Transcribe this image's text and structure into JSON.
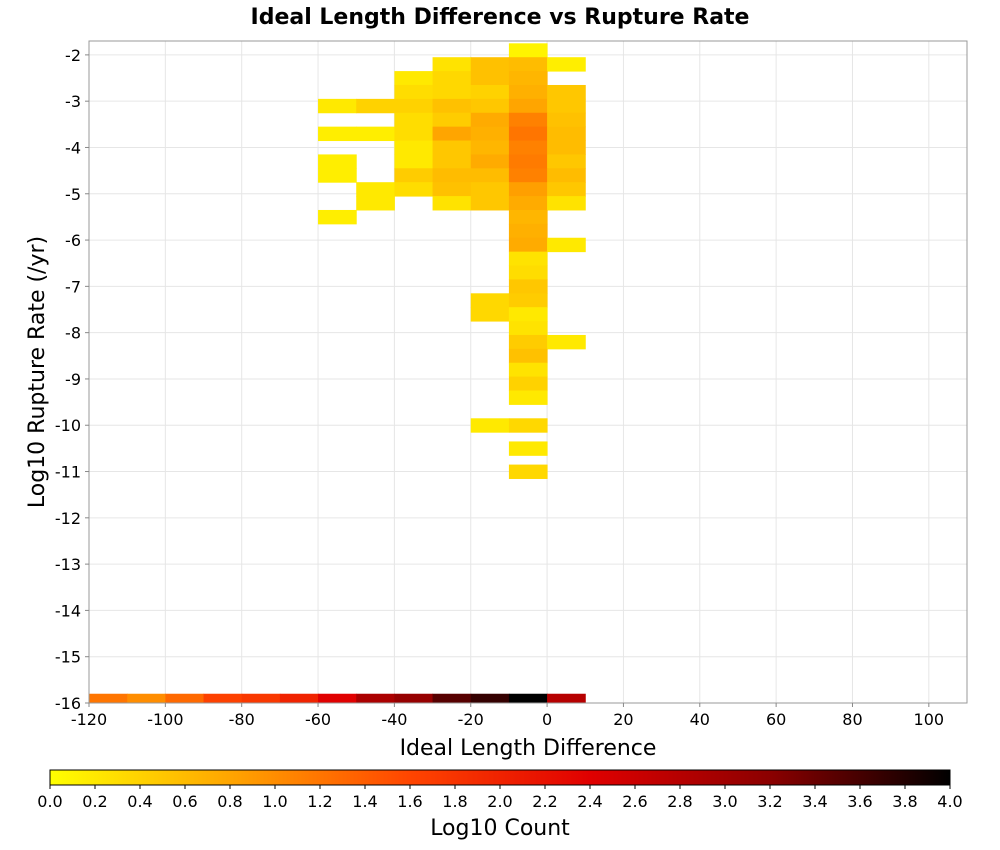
{
  "chart_data": {
    "type": "heatmap",
    "title": "Ideal Length Difference vs Rupture Rate",
    "xlabel": "Ideal Length Difference",
    "ylabel": "Log10 Rupture Rate (/yr)",
    "colorbar_label": "Log10 Count",
    "xlim": [
      -120,
      110
    ],
    "ylim": [
      -16,
      -1.7
    ],
    "x_ticks": [
      -120,
      -100,
      -80,
      -60,
      -40,
      -20,
      0,
      20,
      40,
      60,
      80,
      100
    ],
    "y_ticks": [
      -2,
      -3,
      -4,
      -5,
      -6,
      -7,
      -8,
      -9,
      -10,
      -11,
      -12,
      -13,
      -14,
      -15,
      -16
    ],
    "colorbar_range": [
      0,
      4
    ],
    "colorbar_ticks": [
      "0.0",
      "0.2",
      "0.4",
      "0.6",
      "0.8",
      "1.0",
      "1.2",
      "1.4",
      "1.6",
      "1.8",
      "2.0",
      "2.2",
      "2.4",
      "2.6",
      "2.8",
      "3.0",
      "3.2",
      "3.4",
      "3.6",
      "3.8",
      "4.0"
    ],
    "colormap": [
      "#ffff00",
      "#ffa500",
      "#ff4500",
      "#e00000",
      "#8b0000",
      "#000000"
    ],
    "grid": true,
    "bin_width_x": 10,
    "bin_height_y": 0.3,
    "cells": [
      {
        "x": -5,
        "y": -1.9,
        "v": 0.1
      },
      {
        "x": -25,
        "y": -2.2,
        "v": 0.25
      },
      {
        "x": -15,
        "y": -2.2,
        "v": 0.55
      },
      {
        "x": -5,
        "y": -2.2,
        "v": 0.6
      },
      {
        "x": 5,
        "y": -2.2,
        "v": 0.15
      },
      {
        "x": -35,
        "y": -2.5,
        "v": 0.2
      },
      {
        "x": -25,
        "y": -2.5,
        "v": 0.35
      },
      {
        "x": -15,
        "y": -2.5,
        "v": 0.55
      },
      {
        "x": -5,
        "y": -2.5,
        "v": 0.65
      },
      {
        "x": -35,
        "y": -2.8,
        "v": 0.3
      },
      {
        "x": -25,
        "y": -2.8,
        "v": 0.35
      },
      {
        "x": -15,
        "y": -2.8,
        "v": 0.4
      },
      {
        "x": -5,
        "y": -2.8,
        "v": 0.7
      },
      {
        "x": 5,
        "y": -2.8,
        "v": 0.5
      },
      {
        "x": -55,
        "y": -3.1,
        "v": 0.2
      },
      {
        "x": -45,
        "y": -3.1,
        "v": 0.4
      },
      {
        "x": -35,
        "y": -3.1,
        "v": 0.4
      },
      {
        "x": -25,
        "y": -3.1,
        "v": 0.55
      },
      {
        "x": -15,
        "y": -3.1,
        "v": 0.5
      },
      {
        "x": -5,
        "y": -3.1,
        "v": 0.8
      },
      {
        "x": 5,
        "y": -3.1,
        "v": 0.5
      },
      {
        "x": -35,
        "y": -3.4,
        "v": 0.3
      },
      {
        "x": -25,
        "y": -3.4,
        "v": 0.45
      },
      {
        "x": -15,
        "y": -3.4,
        "v": 0.75
      },
      {
        "x": -5,
        "y": -3.4,
        "v": 1.1
      },
      {
        "x": 5,
        "y": -3.4,
        "v": 0.55
      },
      {
        "x": -55,
        "y": -3.7,
        "v": 0.15
      },
      {
        "x": -45,
        "y": -3.7,
        "v": 0.15
      },
      {
        "x": -35,
        "y": -3.7,
        "v": 0.3
      },
      {
        "x": -25,
        "y": -3.7,
        "v": 0.8
      },
      {
        "x": -15,
        "y": -3.7,
        "v": 0.7
      },
      {
        "x": -5,
        "y": -3.7,
        "v": 1.2
      },
      {
        "x": 5,
        "y": -3.7,
        "v": 0.6
      },
      {
        "x": -35,
        "y": -4.0,
        "v": 0.2
      },
      {
        "x": -25,
        "y": -4.0,
        "v": 0.5
      },
      {
        "x": -15,
        "y": -4.0,
        "v": 0.65
      },
      {
        "x": -5,
        "y": -4.0,
        "v": 1.1
      },
      {
        "x": 5,
        "y": -4.0,
        "v": 0.6
      },
      {
        "x": -55,
        "y": -4.3,
        "v": 0.15
      },
      {
        "x": -35,
        "y": -4.3,
        "v": 0.2
      },
      {
        "x": -25,
        "y": -4.3,
        "v": 0.5
      },
      {
        "x": -15,
        "y": -4.3,
        "v": 0.75
      },
      {
        "x": -5,
        "y": -4.3,
        "v": 1.15
      },
      {
        "x": 5,
        "y": -4.3,
        "v": 0.5
      },
      {
        "x": -55,
        "y": -4.6,
        "v": 0.15
      },
      {
        "x": -35,
        "y": -4.6,
        "v": 0.45
      },
      {
        "x": -25,
        "y": -4.6,
        "v": 0.6
      },
      {
        "x": -15,
        "y": -4.6,
        "v": 0.6
      },
      {
        "x": -5,
        "y": -4.6,
        "v": 1.1
      },
      {
        "x": 5,
        "y": -4.6,
        "v": 0.6
      },
      {
        "x": -45,
        "y": -4.9,
        "v": 0.2
      },
      {
        "x": -35,
        "y": -4.9,
        "v": 0.3
      },
      {
        "x": -25,
        "y": -4.9,
        "v": 0.55
      },
      {
        "x": -15,
        "y": -4.9,
        "v": 0.5
      },
      {
        "x": -5,
        "y": -4.9,
        "v": 0.85
      },
      {
        "x": 5,
        "y": -4.9,
        "v": 0.5
      },
      {
        "x": -45,
        "y": -5.2,
        "v": 0.2
      },
      {
        "x": -25,
        "y": -5.2,
        "v": 0.25
      },
      {
        "x": -15,
        "y": -5.2,
        "v": 0.5
      },
      {
        "x": -5,
        "y": -5.2,
        "v": 0.75
      },
      {
        "x": 5,
        "y": -5.2,
        "v": 0.25
      },
      {
        "x": -55,
        "y": -5.5,
        "v": 0.15
      },
      {
        "x": -5,
        "y": -5.5,
        "v": 0.65
      },
      {
        "x": -5,
        "y": -5.8,
        "v": 0.7
      },
      {
        "x": -5,
        "y": -6.1,
        "v": 0.75
      },
      {
        "x": 5,
        "y": -6.1,
        "v": 0.2
      },
      {
        "x": -5,
        "y": -6.4,
        "v": 0.25
      },
      {
        "x": -5,
        "y": -6.7,
        "v": 0.3
      },
      {
        "x": -5,
        "y": -7.0,
        "v": 0.5
      },
      {
        "x": -15,
        "y": -7.3,
        "v": 0.35
      },
      {
        "x": -5,
        "y": -7.3,
        "v": 0.45
      },
      {
        "x": -15,
        "y": -7.6,
        "v": 0.35
      },
      {
        "x": -5,
        "y": -7.6,
        "v": 0.2
      },
      {
        "x": -5,
        "y": -7.9,
        "v": 0.25
      },
      {
        "x": -5,
        "y": -8.2,
        "v": 0.45
      },
      {
        "x": 5,
        "y": -8.2,
        "v": 0.2
      },
      {
        "x": -5,
        "y": -8.5,
        "v": 0.55
      },
      {
        "x": -5,
        "y": -8.8,
        "v": 0.25
      },
      {
        "x": -5,
        "y": -9.1,
        "v": 0.4
      },
      {
        "x": -5,
        "y": -9.4,
        "v": 0.2
      },
      {
        "x": -15,
        "y": -10.0,
        "v": 0.2
      },
      {
        "x": -5,
        "y": -10.0,
        "v": 0.35
      },
      {
        "x": -5,
        "y": -10.5,
        "v": 0.2
      },
      {
        "x": -5,
        "y": -11.0,
        "v": 0.35
      },
      {
        "x": -115,
        "y": -15.95,
        "v": 1.2
      },
      {
        "x": -105,
        "y": -15.95,
        "v": 1.0
      },
      {
        "x": -95,
        "y": -15.95,
        "v": 1.3
      },
      {
        "x": -85,
        "y": -15.95,
        "v": 1.65
      },
      {
        "x": -75,
        "y": -15.95,
        "v": 1.75
      },
      {
        "x": -65,
        "y": -15.95,
        "v": 2.0
      },
      {
        "x": -55,
        "y": -15.95,
        "v": 2.4
      },
      {
        "x": -45,
        "y": -15.95,
        "v": 2.9
      },
      {
        "x": -35,
        "y": -15.95,
        "v": 3.1
      },
      {
        "x": -25,
        "y": -15.95,
        "v": 3.5
      },
      {
        "x": -15,
        "y": -15.95,
        "v": 3.7
      },
      {
        "x": -5,
        "y": -15.95,
        "v": 4.0
      },
      {
        "x": 5,
        "y": -15.95,
        "v": 2.8
      }
    ]
  }
}
